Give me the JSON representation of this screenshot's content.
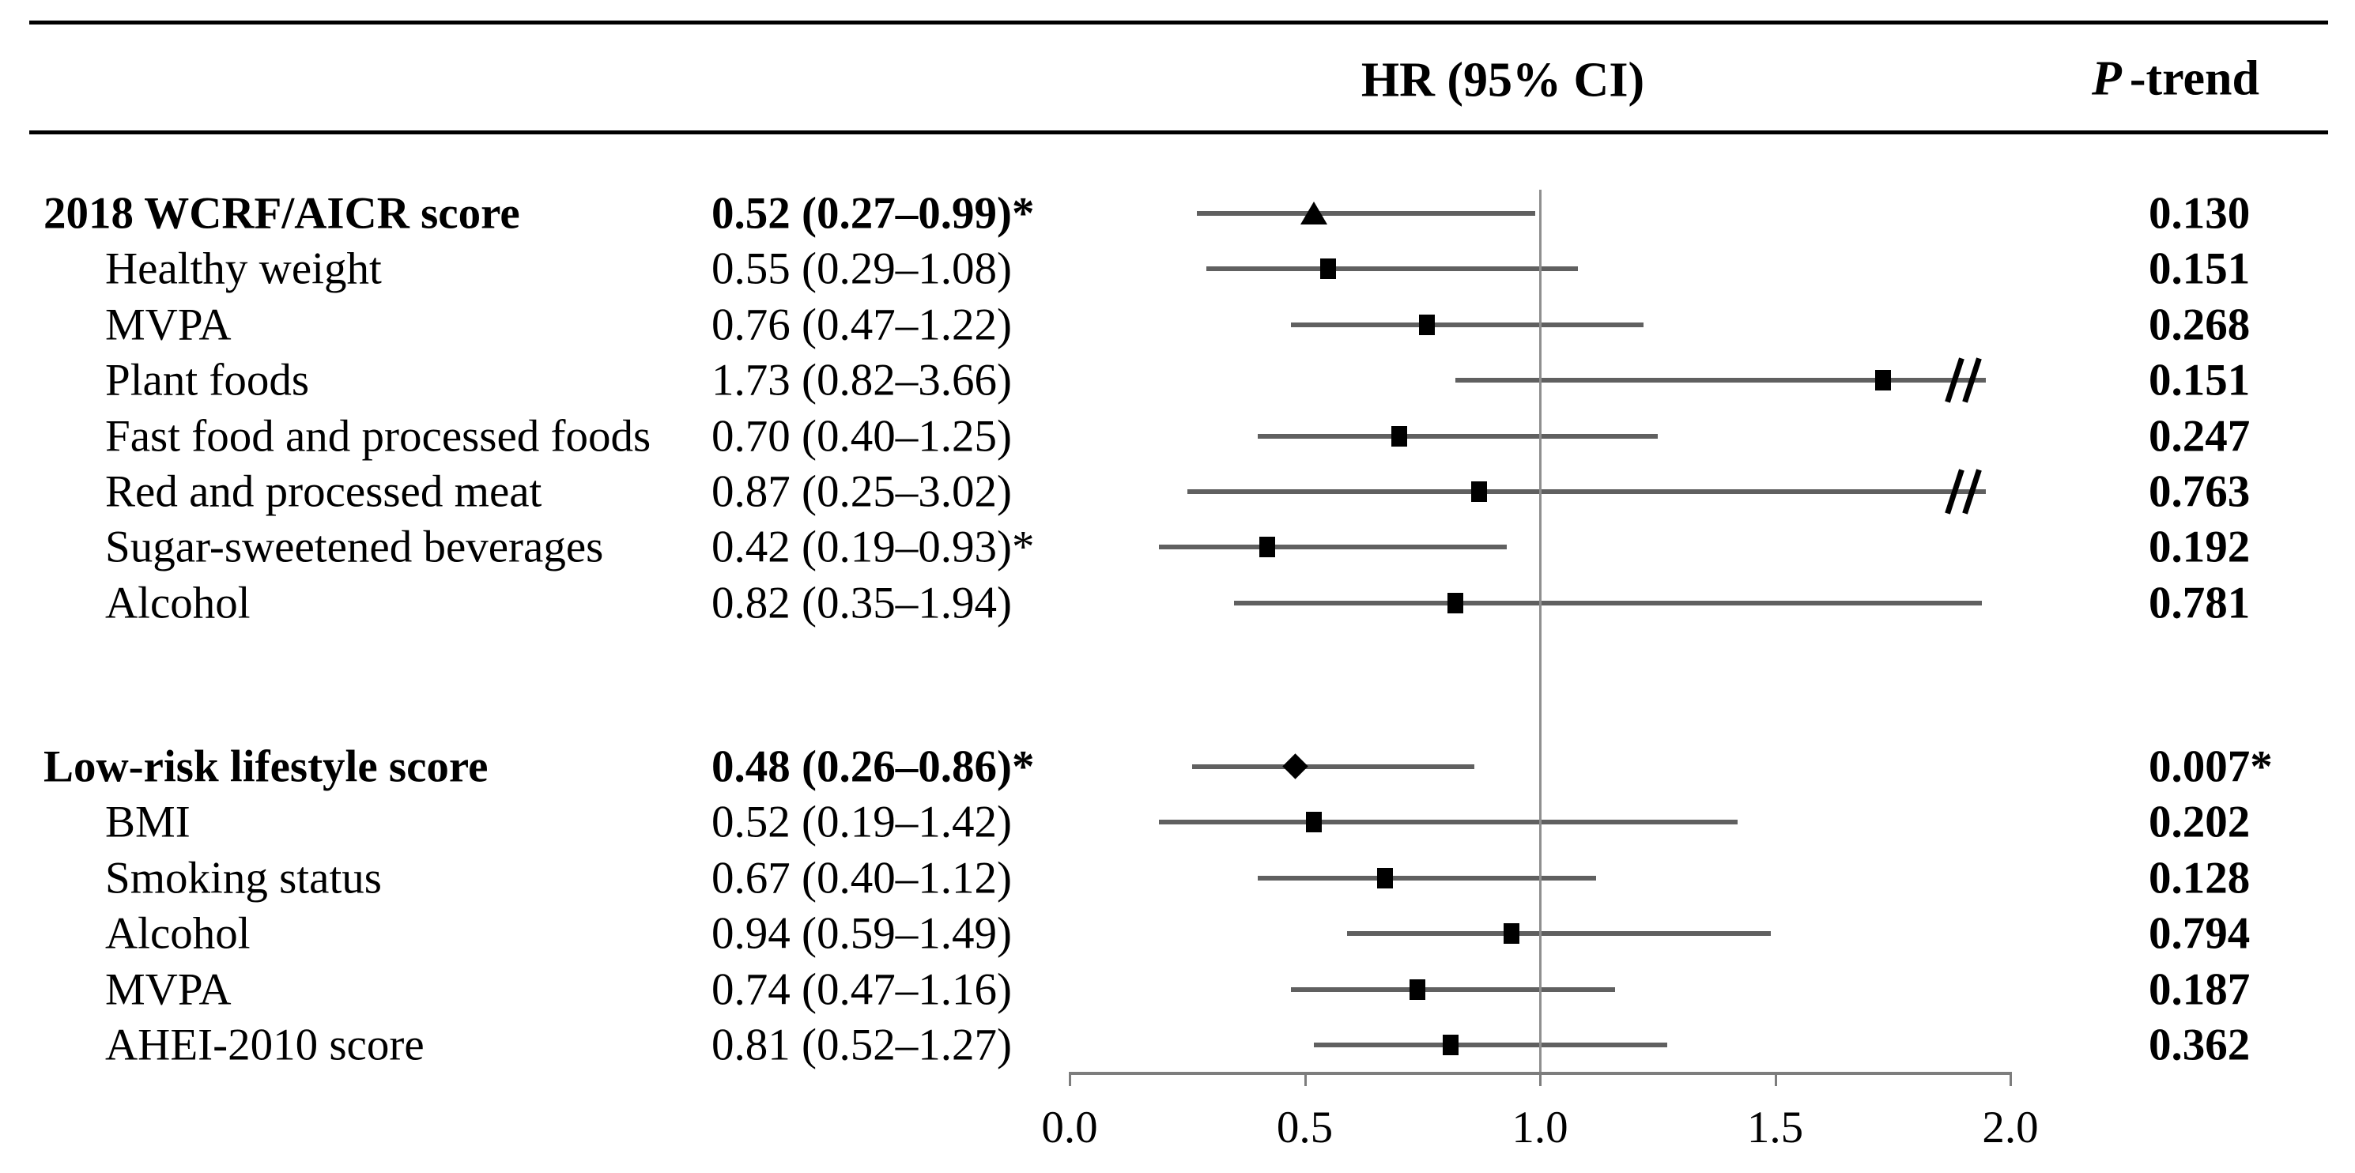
{
  "headers": {
    "hr": "HR (95% CI)",
    "p_prefix": "P",
    "p_suffix": "-trend"
  },
  "colors": {
    "text": "#000000",
    "ci_line": "#606060",
    "axis": "#7d7d7d",
    "refline": "#8f8f8f",
    "rule": "#000000",
    "marker": "#000000"
  },
  "chart_data": {
    "type": "forest",
    "title": "",
    "columns": [
      "",
      "HR (95% CI)",
      "P-trend"
    ],
    "xticks": [
      0.0,
      0.5,
      1.0,
      1.5,
      2.0
    ],
    "xtick_labels": [
      "0.0",
      "0.5",
      "1.0",
      "1.5",
      "2.0"
    ],
    "xlim": [
      0.0,
      2.0
    ],
    "refline": 1.0,
    "clip_upper": 1.95,
    "grid": false,
    "groups": [
      {
        "name": "2018 WCRF/AICR score",
        "rows": [
          {
            "label": "2018 WCRF/AICR score",
            "indent": false,
            "bold": true,
            "marker": "triangle",
            "hr": 0.52,
            "lo": 0.27,
            "hi": 0.99,
            "hr_text": "0.52 (0.27–0.99)*",
            "p_text": "0.130",
            "truncated": false
          },
          {
            "label": "Healthy weight",
            "indent": true,
            "bold": false,
            "marker": "square",
            "hr": 0.55,
            "lo": 0.29,
            "hi": 1.08,
            "hr_text": "0.55 (0.29–1.08)",
            "p_text": "0.151",
            "truncated": false
          },
          {
            "label": "MVPA",
            "indent": true,
            "bold": false,
            "marker": "square",
            "hr": 0.76,
            "lo": 0.47,
            "hi": 1.22,
            "hr_text": "0.76 (0.47–1.22)",
            "p_text": "0.268",
            "truncated": false
          },
          {
            "label": "Plant foods",
            "indent": true,
            "bold": false,
            "marker": "square",
            "hr": 1.73,
            "lo": 0.82,
            "hi": 3.66,
            "hr_text": "1.73 (0.82–3.66)",
            "p_text": "0.151",
            "truncated": true
          },
          {
            "label": "Fast food and processed foods",
            "indent": true,
            "bold": false,
            "marker": "square",
            "hr": 0.7,
            "lo": 0.4,
            "hi": 1.25,
            "hr_text": "0.70 (0.40–1.25)",
            "p_text": "0.247",
            "truncated": false
          },
          {
            "label": "Red and processed meat",
            "indent": true,
            "bold": false,
            "marker": "square",
            "hr": 0.87,
            "lo": 0.25,
            "hi": 3.02,
            "hr_text": "0.87 (0.25–3.02)",
            "p_text": "0.763",
            "truncated": true
          },
          {
            "label": "Sugar-sweetened beverages",
            "indent": true,
            "bold": false,
            "marker": "square",
            "hr": 0.42,
            "lo": 0.19,
            "hi": 0.93,
            "hr_text": "0.42 (0.19–0.93)*",
            "p_text": "0.192",
            "truncated": false
          },
          {
            "label": "Alcohol",
            "indent": true,
            "bold": false,
            "marker": "square",
            "hr": 0.82,
            "lo": 0.35,
            "hi": 1.94,
            "hr_text": "0.82 (0.35–1.94)",
            "p_text": "0.781",
            "truncated": false
          }
        ]
      },
      {
        "name": "Low-risk lifestyle score",
        "rows": [
          {
            "label": "Low-risk lifestyle score",
            "indent": false,
            "bold": true,
            "marker": "diamond",
            "hr": 0.48,
            "lo": 0.26,
            "hi": 0.86,
            "hr_text": "0.48 (0.26–0.86)*",
            "p_text": "0.007*",
            "truncated": false
          },
          {
            "label": "BMI",
            "indent": true,
            "bold": false,
            "marker": "square",
            "hr": 0.52,
            "lo": 0.19,
            "hi": 1.42,
            "hr_text": "0.52 (0.19–1.42)",
            "p_text": "0.202",
            "truncated": false
          },
          {
            "label": "Smoking status",
            "indent": true,
            "bold": false,
            "marker": "square",
            "hr": 0.67,
            "lo": 0.4,
            "hi": 1.12,
            "hr_text": "0.67 (0.40–1.12)",
            "p_text": "0.128",
            "truncated": false
          },
          {
            "label": "Alcohol",
            "indent": true,
            "bold": false,
            "marker": "square",
            "hr": 0.94,
            "lo": 0.59,
            "hi": 1.49,
            "hr_text": "0.94 (0.59–1.49)",
            "p_text": "0.794",
            "truncated": false
          },
          {
            "label": "MVPA",
            "indent": true,
            "bold": false,
            "marker": "square",
            "hr": 0.74,
            "lo": 0.47,
            "hi": 1.16,
            "hr_text": "0.74 (0.47–1.16)",
            "p_text": "0.187",
            "truncated": false
          },
          {
            "label": "AHEI-2010 score",
            "indent": true,
            "bold": false,
            "marker": "square",
            "hr": 0.81,
            "lo": 0.52,
            "hi": 1.27,
            "hr_text": "0.81 (0.52–1.27)",
            "p_text": "0.362",
            "truncated": false
          }
        ]
      }
    ]
  }
}
